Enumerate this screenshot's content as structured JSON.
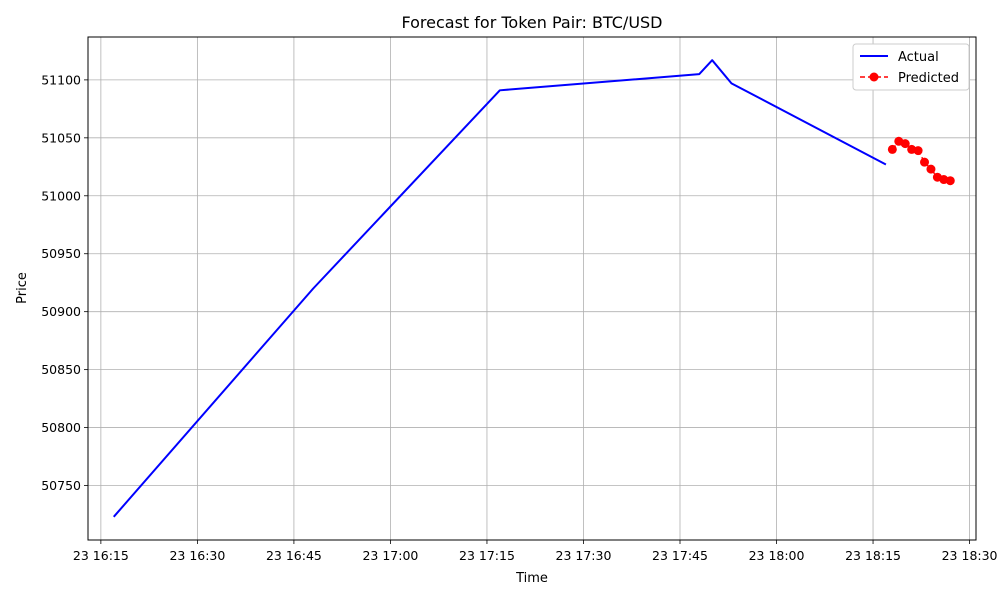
{
  "chart_data": {
    "type": "line",
    "title": "Forecast for Token Pair: BTC/USD",
    "xlabel": "Time",
    "ylabel": "Price",
    "x_ticks": [
      "16:15",
      "16:30",
      "16:45",
      "17:00",
      "17:15",
      "17:30",
      "17:45",
      "18:00",
      "18:15",
      "18:30"
    ],
    "x_tick_labels": [
      "23 16:15",
      "23 16:30",
      "23 16:45",
      "23 17:00",
      "23 17:15",
      "23 17:30",
      "23 17:45",
      "23 18:00",
      "23 18:15",
      "23 18:30"
    ],
    "xlim": [
      "16:13",
      "18:31"
    ],
    "y_ticks": [
      50750,
      50800,
      50850,
      50900,
      50950,
      51000,
      51050,
      51100
    ],
    "ylim": [
      50703,
      51137
    ],
    "grid": true,
    "legend_position": "upper-right",
    "series": [
      {
        "name": "Actual",
        "color": "#0000ff",
        "style": "solid",
        "marker": "none",
        "points": [
          {
            "x": "16:17",
            "y": 50723
          },
          {
            "x": "16:48",
            "y": 50920
          },
          {
            "x": "17:17",
            "y": 51091
          },
          {
            "x": "17:48",
            "y": 51105
          },
          {
            "x": "17:50",
            "y": 51117
          },
          {
            "x": "17:53",
            "y": 51097
          },
          {
            "x": "18:17",
            "y": 51027
          }
        ]
      },
      {
        "name": "Predicted",
        "color": "#ff0000",
        "style": "dashed",
        "marker": "circle",
        "points": [
          {
            "x": "18:18",
            "y": 51040
          },
          {
            "x": "18:19",
            "y": 51047
          },
          {
            "x": "18:20",
            "y": 51045
          },
          {
            "x": "18:21",
            "y": 51040
          },
          {
            "x": "18:22",
            "y": 51039
          },
          {
            "x": "18:23",
            "y": 51029
          },
          {
            "x": "18:24",
            "y": 51023
          },
          {
            "x": "18:25",
            "y": 51016
          },
          {
            "x": "18:26",
            "y": 51014
          },
          {
            "x": "18:27",
            "y": 51013
          }
        ]
      }
    ]
  }
}
